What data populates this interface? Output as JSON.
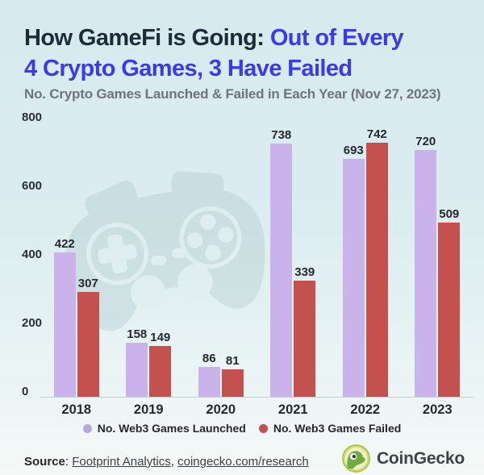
{
  "title": {
    "dark": "How GameFi is Going: ",
    "accent_line1": "Out of Every",
    "accent_line2": "4 Crypto Games, 3 Have Failed",
    "subtitle": "No. Crypto Games Launched & Failed in Each Year (Nov 27, 2023)"
  },
  "colors": {
    "accent_blue": "#3c38ef",
    "title_dark": "#1d2b3a",
    "launched_bar": "#c9b3ea",
    "failed_bar": "#c5514f",
    "background_top": "#d6eaee",
    "background_bottom": "#f4f9f7"
  },
  "chart_data": {
    "type": "bar",
    "title": "How GameFi is Going: Out of Every 4 Crypto Games, 3 Have Failed",
    "subtitle": "No. Crypto Games Launched & Failed in Each Year (Nov 27, 2023)",
    "categories": [
      "2018",
      "2019",
      "2020",
      "2021",
      "2022",
      "2023"
    ],
    "series": [
      {
        "name": "No. Web3 Games Launched",
        "color": "#c9b3ea",
        "values": [
          422,
          158,
          86,
          738,
          693,
          720
        ]
      },
      {
        "name": "No. Web3 Games Failed",
        "color": "#c5514f",
        "values": [
          307,
          149,
          81,
          339,
          742,
          509
        ]
      }
    ],
    "xlabel": "",
    "ylabel": "",
    "ylim": [
      0,
      800
    ],
    "yticks": [
      800,
      600,
      400,
      200,
      0
    ],
    "grid": false,
    "legend_position": "bottom"
  },
  "legend": [
    {
      "label": "No. Web3 Games Launched",
      "color": "#b6a7e0"
    },
    {
      "label": "No. Web3 Games Failed",
      "color": "#c5504e"
    }
  ],
  "footer": {
    "source_label": "Source",
    "links": [
      "Footprint Analytics",
      "coingecko.com/research"
    ],
    "brand": "CoinGecko"
  },
  "watermark_icon": "gamepad-icon"
}
